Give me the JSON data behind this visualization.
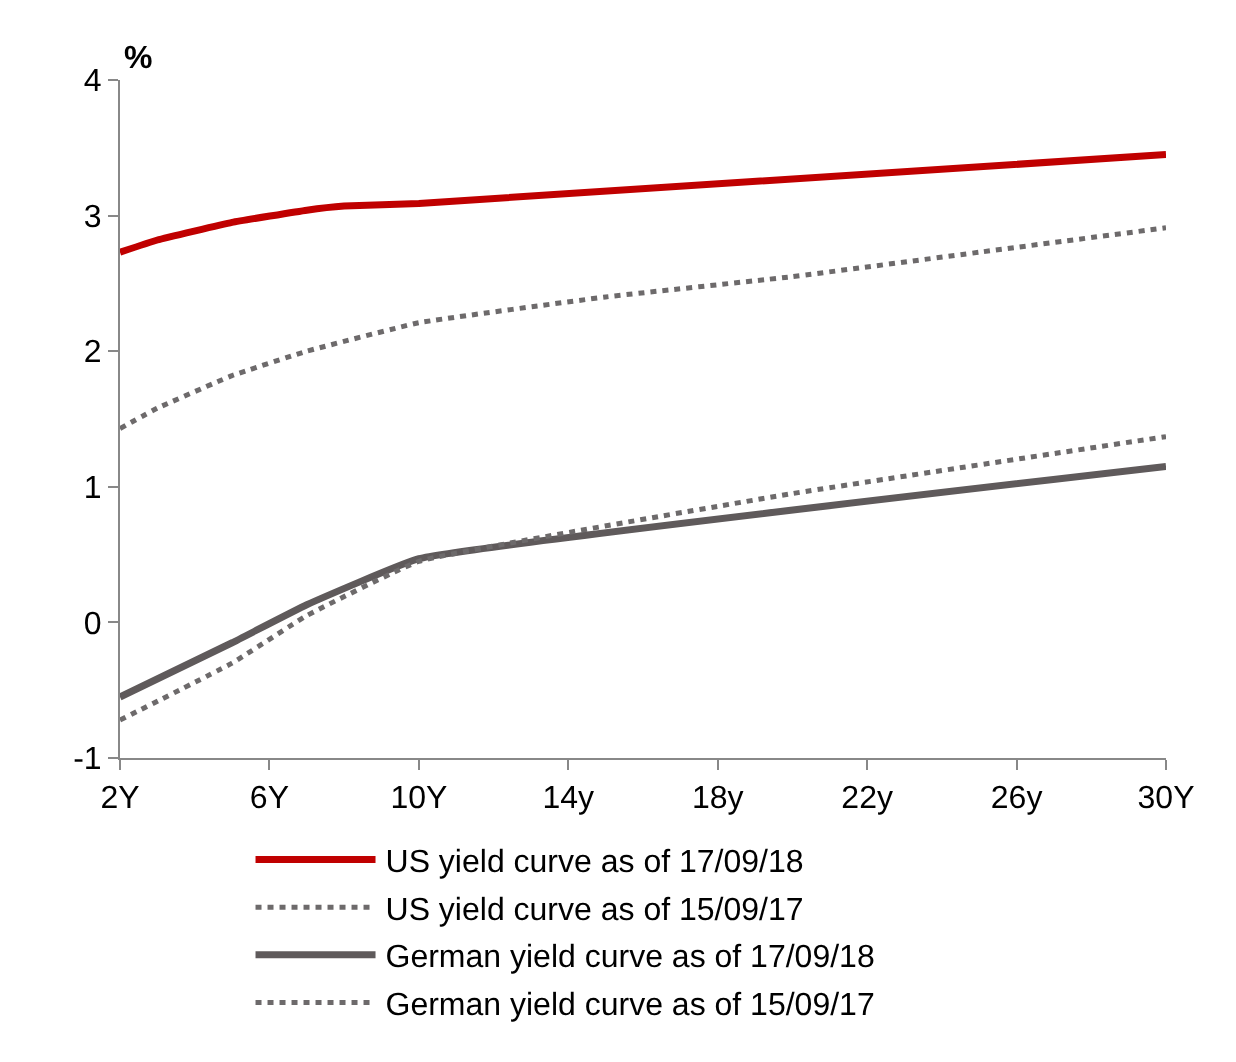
{
  "chart_data": {
    "type": "line",
    "ylabel": "%",
    "xlim": [
      2,
      30
    ],
    "xticks": [
      {
        "value": 2,
        "label": "2Y"
      },
      {
        "value": 6,
        "label": "6Y"
      },
      {
        "value": 10,
        "label": "10Y"
      },
      {
        "value": 14,
        "label": "14y"
      },
      {
        "value": 18,
        "label": "18y"
      },
      {
        "value": 22,
        "label": "22y"
      },
      {
        "value": 26,
        "label": "26y"
      },
      {
        "value": 30,
        "label": "30Y"
      }
    ],
    "ylim": [
      -1,
      4
    ],
    "yticks": [
      -1,
      0,
      1,
      2,
      3,
      4
    ],
    "legend": "bottom",
    "marker": "none",
    "series": [
      {
        "name": "US yield curve as of 17/09/18",
        "color": "#c00000",
        "line_style": "solid",
        "x": [
          2,
          3,
          5,
          7,
          8,
          10,
          30
        ],
        "values": [
          2.73,
          2.82,
          2.95,
          3.04,
          3.07,
          3.09,
          3.45
        ]
      },
      {
        "name": "US yield curve as of 15/09/17",
        "color": "#6d6a6b",
        "line_style": "dotted",
        "x": [
          2,
          3,
          5,
          7,
          10,
          15,
          20,
          25,
          30
        ],
        "values": [
          1.43,
          1.58,
          1.82,
          2.0,
          2.21,
          2.4,
          2.55,
          2.73,
          2.91
        ]
      },
      {
        "name": "German yield curve as of 17/09/18",
        "color": "#5f5a5b",
        "line_style": "solid",
        "x": [
          2,
          5,
          7,
          10,
          30
        ],
        "values": [
          -0.55,
          -0.15,
          0.13,
          0.47,
          1.15
        ]
      },
      {
        "name": "German yield curve as of 15/09/17",
        "color": "#6d6a6b",
        "line_style": "dotted",
        "x": [
          2,
          5,
          7,
          10,
          20,
          30
        ],
        "values": [
          -0.72,
          -0.3,
          0.05,
          0.45,
          0.95,
          1.37
        ]
      }
    ]
  }
}
